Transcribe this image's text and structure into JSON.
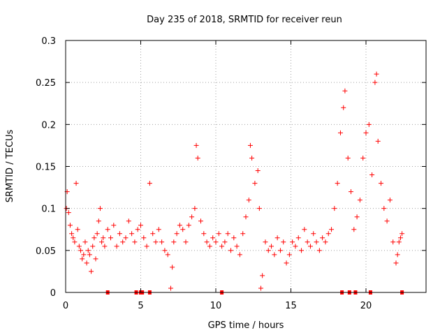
{
  "chart_data": {
    "type": "scatter",
    "title": "Day 235 of 2018, SRMTID for receiver reun",
    "xlabel": "GPS time / hours",
    "ylabel": "SRMTID / TECUs",
    "xlim": [
      0,
      24
    ],
    "ylim": [
      0,
      0.3
    ],
    "x_ticks": [
      0,
      5,
      10,
      15,
      20
    ],
    "x_tick_labels": [
      "0",
      "5",
      "10",
      "15",
      "20"
    ],
    "y_ticks": [
      0,
      0.05,
      0.1,
      0.15,
      0.2,
      0.25,
      0.3
    ],
    "y_tick_labels": [
      "0",
      "0.05",
      "0.1",
      "0.15",
      "0.2",
      "0.25",
      "0.3"
    ],
    "grid": true,
    "marker": "+",
    "color": "#ff0000",
    "series": [
      {
        "name": "SRMTID",
        "points": [
          [
            0.05,
            0.1
          ],
          [
            0.1,
            0.12
          ],
          [
            0.2,
            0.095
          ],
          [
            0.3,
            0.08
          ],
          [
            0.4,
            0.07
          ],
          [
            0.5,
            0.065
          ],
          [
            0.6,
            0.06
          ],
          [
            0.7,
            0.13
          ],
          [
            0.8,
            0.075
          ],
          [
            0.9,
            0.055
          ],
          [
            1.0,
            0.05
          ],
          [
            1.1,
            0.04
          ],
          [
            1.2,
            0.045
          ],
          [
            1.3,
            0.06
          ],
          [
            1.4,
            0.035
          ],
          [
            1.5,
            0.05
          ],
          [
            1.6,
            0.045
          ],
          [
            1.7,
            0.025
          ],
          [
            1.8,
            0.055
          ],
          [
            1.9,
            0.065
          ],
          [
            2.0,
            0.04
          ],
          [
            2.1,
            0.07
          ],
          [
            2.2,
            0.085
          ],
          [
            2.3,
            0.1
          ],
          [
            2.4,
            0.06
          ],
          [
            2.5,
            0.065
          ],
          [
            2.6,
            0.055
          ],
          [
            2.8,
            0.075
          ],
          [
            3.0,
            0.065
          ],
          [
            3.2,
            0.08
          ],
          [
            3.4,
            0.055
          ],
          [
            3.6,
            0.07
          ],
          [
            3.8,
            0.06
          ],
          [
            4.0,
            0.065
          ],
          [
            4.2,
            0.085
          ],
          [
            4.4,
            0.07
          ],
          [
            4.6,
            0.06
          ],
          [
            4.8,
            0.075
          ],
          [
            5.0,
            0.08
          ],
          [
            5.2,
            0.065
          ],
          [
            5.4,
            0.055
          ],
          [
            5.6,
            0.13
          ],
          [
            5.8,
            0.07
          ],
          [
            6.0,
            0.06
          ],
          [
            6.2,
            0.075
          ],
          [
            6.4,
            0.06
          ],
          [
            6.6,
            0.05
          ],
          [
            6.8,
            0.045
          ],
          [
            7.0,
            0.005
          ],
          [
            7.1,
            0.03
          ],
          [
            7.2,
            0.06
          ],
          [
            7.4,
            0.07
          ],
          [
            7.6,
            0.08
          ],
          [
            7.8,
            0.075
          ],
          [
            8.0,
            0.06
          ],
          [
            8.2,
            0.08
          ],
          [
            8.4,
            0.09
          ],
          [
            8.6,
            0.1
          ],
          [
            8.7,
            0.175
          ],
          [
            8.8,
            0.16
          ],
          [
            9.0,
            0.085
          ],
          [
            9.2,
            0.07
          ],
          [
            9.4,
            0.06
          ],
          [
            9.6,
            0.055
          ],
          [
            9.8,
            0.065
          ],
          [
            10.0,
            0.06
          ],
          [
            10.2,
            0.07
          ],
          [
            10.4,
            0.055
          ],
          [
            10.6,
            0.06
          ],
          [
            10.8,
            0.07
          ],
          [
            11.0,
            0.05
          ],
          [
            11.2,
            0.065
          ],
          [
            11.4,
            0.055
          ],
          [
            11.6,
            0.045
          ],
          [
            11.8,
            0.07
          ],
          [
            12.0,
            0.09
          ],
          [
            12.2,
            0.11
          ],
          [
            12.3,
            0.175
          ],
          [
            12.4,
            0.16
          ],
          [
            12.6,
            0.13
          ],
          [
            12.8,
            0.145
          ],
          [
            12.9,
            0.1
          ],
          [
            13.0,
            0.005
          ],
          [
            13.1,
            0.02
          ],
          [
            13.3,
            0.06
          ],
          [
            13.5,
            0.05
          ],
          [
            13.7,
            0.055
          ],
          [
            13.9,
            0.045
          ],
          [
            14.1,
            0.065
          ],
          [
            14.3,
            0.05
          ],
          [
            14.5,
            0.06
          ],
          [
            14.7,
            0.035
          ],
          [
            14.9,
            0.045
          ],
          [
            15.1,
            0.06
          ],
          [
            15.3,
            0.055
          ],
          [
            15.5,
            0.065
          ],
          [
            15.7,
            0.05
          ],
          [
            15.9,
            0.075
          ],
          [
            16.1,
            0.06
          ],
          [
            16.3,
            0.055
          ],
          [
            16.5,
            0.07
          ],
          [
            16.7,
            0.06
          ],
          [
            16.9,
            0.05
          ],
          [
            17.1,
            0.065
          ],
          [
            17.3,
            0.06
          ],
          [
            17.5,
            0.07
          ],
          [
            17.7,
            0.075
          ],
          [
            17.9,
            0.1
          ],
          [
            18.1,
            0.13
          ],
          [
            18.3,
            0.19
          ],
          [
            18.5,
            0.22
          ],
          [
            18.6,
            0.24
          ],
          [
            18.8,
            0.16
          ],
          [
            19.0,
            0.12
          ],
          [
            19.2,
            0.075
          ],
          [
            19.4,
            0.09
          ],
          [
            19.6,
            0.11
          ],
          [
            19.8,
            0.16
          ],
          [
            20.0,
            0.19
          ],
          [
            20.2,
            0.2
          ],
          [
            20.4,
            0.14
          ],
          [
            20.6,
            0.25
          ],
          [
            20.7,
            0.26
          ],
          [
            20.8,
            0.18
          ],
          [
            21.0,
            0.13
          ],
          [
            21.2,
            0.1
          ],
          [
            21.4,
            0.085
          ],
          [
            21.6,
            0.11
          ],
          [
            21.8,
            0.06
          ],
          [
            22.0,
            0.035
          ],
          [
            22.1,
            0.045
          ],
          [
            22.2,
            0.06
          ],
          [
            22.3,
            0.065
          ],
          [
            22.4,
            0.07
          ]
        ]
      }
    ],
    "x_axis_markers": [
      2.8,
      4.7,
      5.0,
      5.1,
      5.6,
      10.4,
      18.4,
      18.9,
      19.3,
      20.3,
      22.4
    ]
  }
}
